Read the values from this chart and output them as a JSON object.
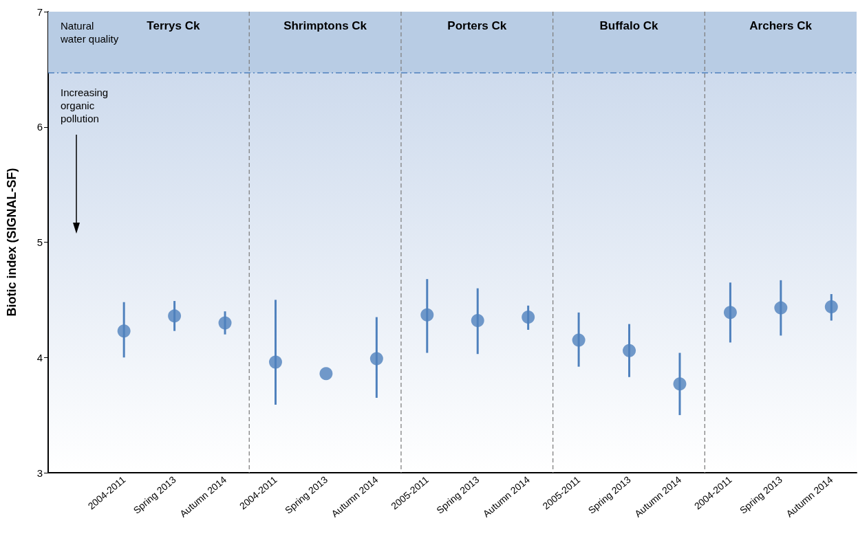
{
  "chart_data": {
    "type": "scatter",
    "ylabel": "Biotic index (SIGNAL-SF)",
    "categories": [
      null,
      "2004-2011",
      "Spring 2013",
      "Autumn 2014",
      "2004-2011",
      "Spring 2013",
      "Autumn 2014",
      "2005-2011",
      "Spring 2013",
      "Autumn 2014",
      "2005-2011",
      "Spring 2013",
      "Autumn 2014",
      "2004-2011",
      "Spring 2013",
      "Autumn 2014"
    ],
    "ylim": [
      3,
      7
    ],
    "yticks": [
      3,
      4,
      5,
      6,
      7
    ],
    "series": [
      {
        "color": "#4f81bd",
        "values": [
          null,
          4.23,
          4.36,
          4.3,
          3.96,
          3.86,
          3.99,
          4.37,
          4.32,
          4.35,
          4.15,
          4.06,
          3.77,
          4.39,
          4.43,
          4.44
        ],
        "errors": [
          null,
          [
            4.0,
            4.48
          ],
          [
            4.23,
            4.49
          ],
          [
            4.2,
            4.4
          ],
          [
            3.59,
            4.5
          ],
          null,
          [
            3.65,
            4.35
          ],
          [
            4.04,
            4.68
          ],
          [
            4.03,
            4.6
          ],
          [
            4.24,
            4.45
          ],
          [
            3.92,
            4.39
          ],
          [
            3.83,
            4.29
          ],
          [
            3.5,
            4.04
          ],
          [
            4.13,
            4.65
          ],
          [
            4.19,
            4.67
          ],
          [
            4.32,
            4.55
          ]
        ]
      }
    ],
    "marker": "circle",
    "grid": false,
    "ref_lines": [
      {
        "axis": "y",
        "value": 6.47,
        "color": "#4f81bd",
        "line_style": "dashed"
      }
    ],
    "bands": [
      {
        "axis": "y",
        "from": 6.47,
        "to": 7,
        "color": "#b8cce4"
      }
    ],
    "annotations": [
      "Natural water quality",
      "Increasing organic pollution",
      "Terrys Ck",
      "Shrimptons Ck",
      "Porters Ck",
      "Buffalo Ck",
      "Archers Ck"
    ]
  }
}
